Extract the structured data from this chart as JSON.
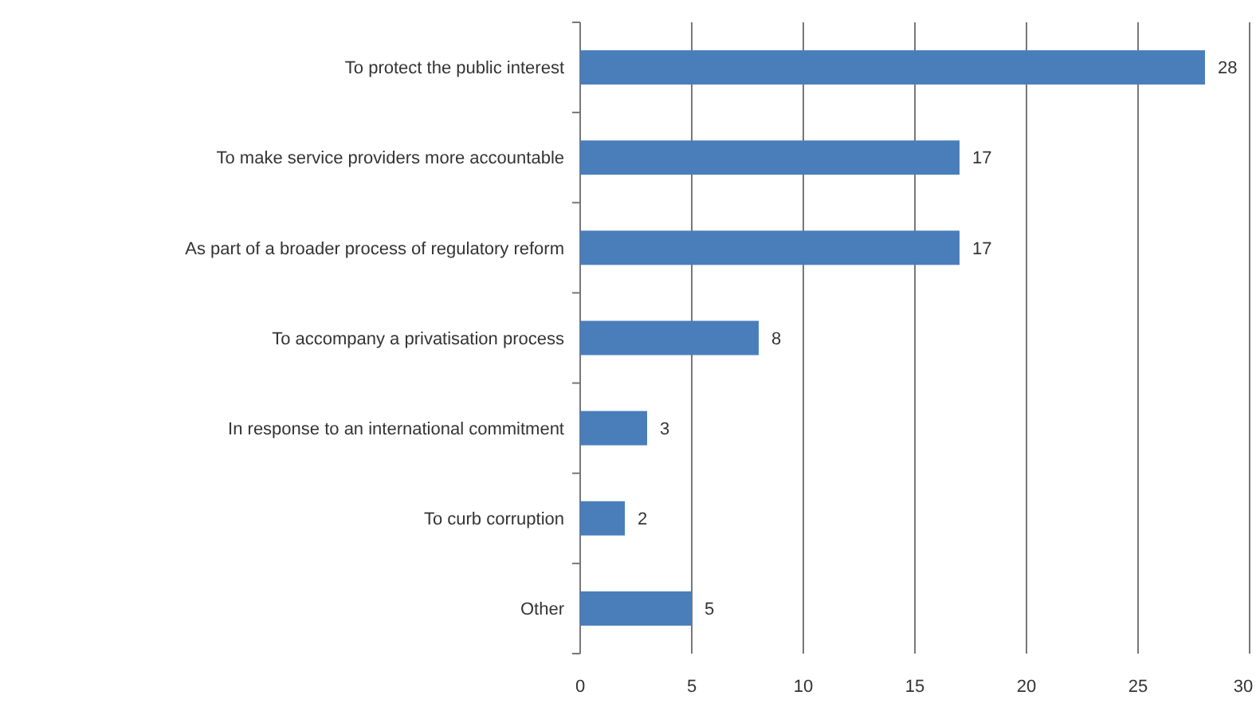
{
  "chart_data": {
    "type": "bar",
    "orientation": "horizontal",
    "categories": [
      "To protect the public interest",
      "To make service providers more accountable",
      "As part of a broader process of regulatory reform",
      "To accompany a privatisation process",
      "In response to an international commitment",
      "To curb corruption",
      "Other"
    ],
    "values": [
      28,
      17,
      17,
      8,
      3,
      2,
      5
    ],
    "color": "#4a7ebb",
    "xlim": [
      0,
      30
    ],
    "xticks": [
      0,
      5,
      10,
      15,
      20,
      25,
      30
    ],
    "grid": "x",
    "data_labels": true
  }
}
